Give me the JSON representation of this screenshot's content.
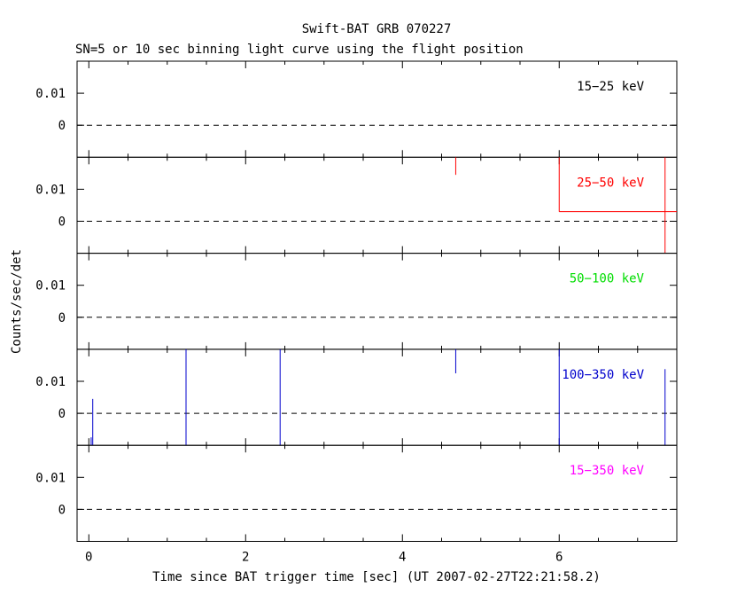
{
  "title": "Swift-BAT GRB 070227",
  "subtitle": "SN=5 or 10 sec binning light curve using the flight position",
  "ylabel": "Counts/sec/det",
  "xlabel": "Time since BAT trigger time [sec] (UT 2007-02-27T22:21:58.2)",
  "chart_data": {
    "type": "line",
    "title": "Swift-BAT GRB 070227",
    "subtitle": "SN=5 or 10 sec binning light curve using the flight position",
    "xlabel": "Time since BAT trigger time [sec] (UT 2007-02-27T22:21:58.2)",
    "ylabel": "Counts/sec/det",
    "xlim": [
      -0.15,
      7.5
    ],
    "ylim": [
      -0.01,
      0.02
    ],
    "xticks": [
      0,
      2,
      4,
      6
    ],
    "xtick_labels": [
      "0",
      "2",
      "4",
      "6"
    ],
    "yticks": [
      0,
      0.01
    ],
    "ytick_labels": [
      "0",
      "0.01"
    ],
    "panels": [
      {
        "name": "15-25 keV",
        "label": "15−25 keV",
        "color": "#000000",
        "steps": [],
        "errorbars": []
      },
      {
        "name": "25-50 keV",
        "label": "25−50 keV",
        "color": "#ff0000",
        "steps": [
          {
            "x0": 6.0,
            "x1": 7.5,
            "y": 0.003
          }
        ],
        "errorbars": [
          {
            "x": 4.68,
            "ylo": 0.0145,
            "yhi": 0.02
          },
          {
            "x": 6.0,
            "ylo": 0.003,
            "yhi": 0.02
          },
          {
            "x": 7.35,
            "ylo": -0.01,
            "yhi": 0.02
          }
        ]
      },
      {
        "name": "50-100 keV",
        "label": "50−100 keV",
        "color": "#00dd00",
        "steps": [],
        "errorbars": []
      },
      {
        "name": "100-350 keV",
        "label": "100−350 keV",
        "color": "#0000cc",
        "steps": [],
        "errorbars": [
          {
            "x": 0.03,
            "ylo": -0.01,
            "yhi": -0.0075
          },
          {
            "x": 0.05,
            "ylo": -0.01,
            "yhi": 0.0045
          },
          {
            "x": 1.24,
            "ylo": -0.01,
            "yhi": 0.02
          },
          {
            "x": 2.44,
            "ylo": -0.01,
            "yhi": 0.02
          },
          {
            "x": 4.68,
            "ylo": 0.0125,
            "yhi": 0.02
          },
          {
            "x": 6.0,
            "ylo": -0.01,
            "yhi": 0.02
          },
          {
            "x": 7.35,
            "ylo": -0.01,
            "yhi": 0.0138
          }
        ]
      },
      {
        "name": "15-350 keV",
        "label": "15−350 keV",
        "color": "#ff00ff",
        "steps": [],
        "errorbars": []
      }
    ]
  }
}
